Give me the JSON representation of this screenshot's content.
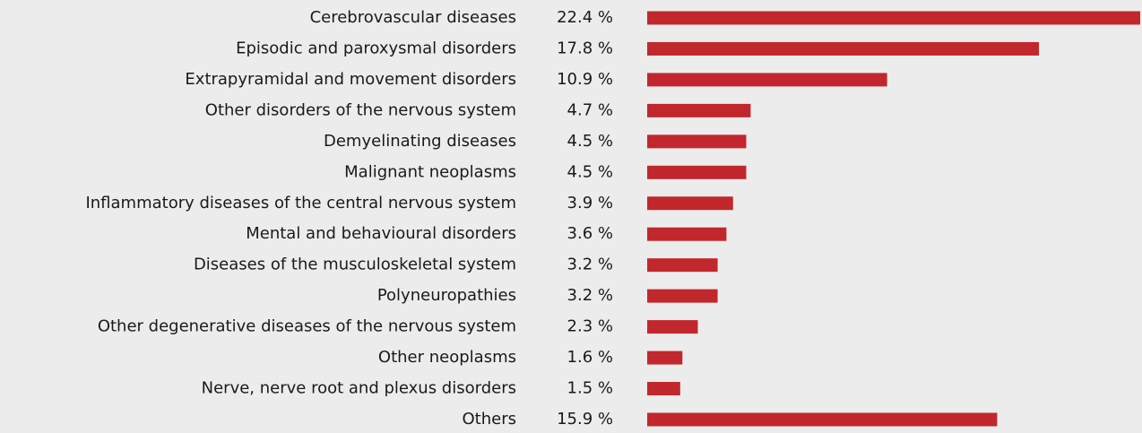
{
  "chart_data": {
    "type": "bar",
    "orientation": "horizontal",
    "color": "#c1272d",
    "categories": [
      "Cerebrovascular diseases",
      "Episodic and paroxysmal disorders",
      "Extrapyramidal and movement disorders",
      "Other disorders of the nervous system",
      "Demyelinating diseases",
      "Malignant neoplasms",
      "Inflammatory diseases of the central nervous system",
      "Mental and behavioural disorders",
      "Diseases of the musculoskeletal system",
      "Polyneuropathies",
      "Other degenerative diseases of the nervous system",
      "Other neoplasms",
      "Nerve, nerve root and plexus disorders",
      "Others"
    ],
    "values": [
      22.4,
      17.8,
      10.9,
      4.7,
      4.5,
      4.5,
      3.9,
      3.6,
      3.2,
      3.2,
      2.3,
      1.6,
      1.5,
      15.9
    ],
    "value_labels": [
      "22.4 %",
      "17.8 %",
      "10.9 %",
      "4.7 %",
      "4.5 %",
      "4.5 %",
      "3.9 %",
      "3.6 %",
      "3.2 %",
      "3.2 %",
      "2.3 %",
      "1.6 %",
      "1.5 %",
      "15.9 %"
    ]
  }
}
